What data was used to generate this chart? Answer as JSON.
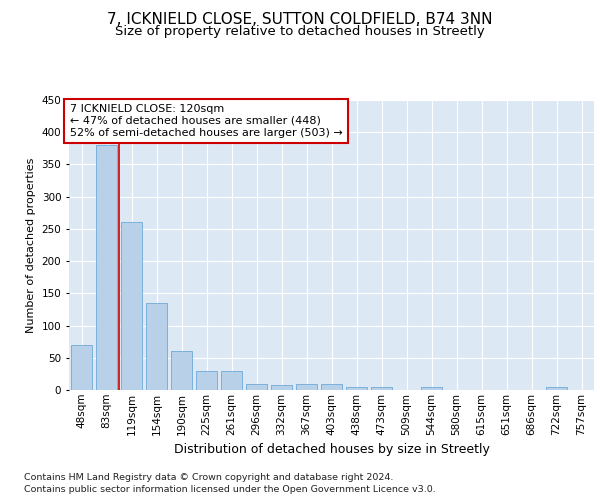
{
  "title1": "7, ICKNIELD CLOSE, SUTTON COLDFIELD, B74 3NN",
  "title2": "Size of property relative to detached houses in Streetly",
  "xlabel": "Distribution of detached houses by size in Streetly",
  "ylabel": "Number of detached properties",
  "categories": [
    "48sqm",
    "83sqm",
    "119sqm",
    "154sqm",
    "190sqm",
    "225sqm",
    "261sqm",
    "296sqm",
    "332sqm",
    "367sqm",
    "403sqm",
    "438sqm",
    "473sqm",
    "509sqm",
    "544sqm",
    "580sqm",
    "615sqm",
    "651sqm",
    "686sqm",
    "722sqm",
    "757sqm"
  ],
  "values": [
    70,
    380,
    260,
    135,
    60,
    30,
    30,
    10,
    8,
    10,
    10,
    5,
    5,
    0,
    5,
    0,
    0,
    0,
    0,
    5,
    0
  ],
  "bar_color": "#b8d0e8",
  "bar_edge_color": "#5a9fd4",
  "annotation_line1": "7 ICKNIELD CLOSE: 120sqm",
  "annotation_line2": "← 47% of detached houses are smaller (448)",
  "annotation_line3": "52% of semi-detached houses are larger (503) →",
  "annotation_box_color": "#ffffff",
  "annotation_box_edge_color": "#cc0000",
  "vline_x": 1.5,
  "vline_color": "#cc0000",
  "ylim": [
    0,
    450
  ],
  "yticks": [
    0,
    50,
    100,
    150,
    200,
    250,
    300,
    350,
    400,
    450
  ],
  "footer1": "Contains HM Land Registry data © Crown copyright and database right 2024.",
  "footer2": "Contains public sector information licensed under the Open Government Licence v3.0.",
  "bg_color": "#dde8f5",
  "fig_bg_color": "#ffffff",
  "title1_fontsize": 11,
  "title2_fontsize": 9.5,
  "xlabel_fontsize": 9,
  "ylabel_fontsize": 8,
  "tick_fontsize": 7.5,
  "footer_fontsize": 6.8
}
